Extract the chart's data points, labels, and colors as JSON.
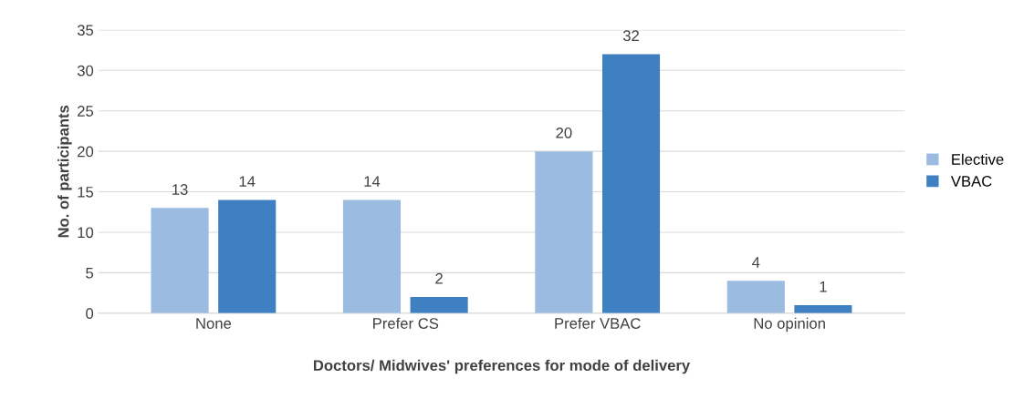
{
  "chart_data": {
    "type": "bar",
    "xlabel": "Doctors/ Midwives' preferences for mode of delivery",
    "ylabel": "No. of participants",
    "categories": [
      "None",
      "Prefer CS",
      "Prefer VBAC",
      "No opinion"
    ],
    "series": [
      {
        "name": "Elective",
        "color": "#9bbbe0",
        "values": [
          13,
          14,
          20,
          4
        ]
      },
      {
        "name": "VBAC",
        "color": "#3f80c2",
        "values": [
          14,
          2,
          32,
          1
        ]
      }
    ],
    "ylim": [
      0,
      35
    ],
    "yticks": [
      0,
      5,
      10,
      15,
      20,
      25,
      30,
      35
    ],
    "grid": "y",
    "legend": "right",
    "data_labels": true
  }
}
